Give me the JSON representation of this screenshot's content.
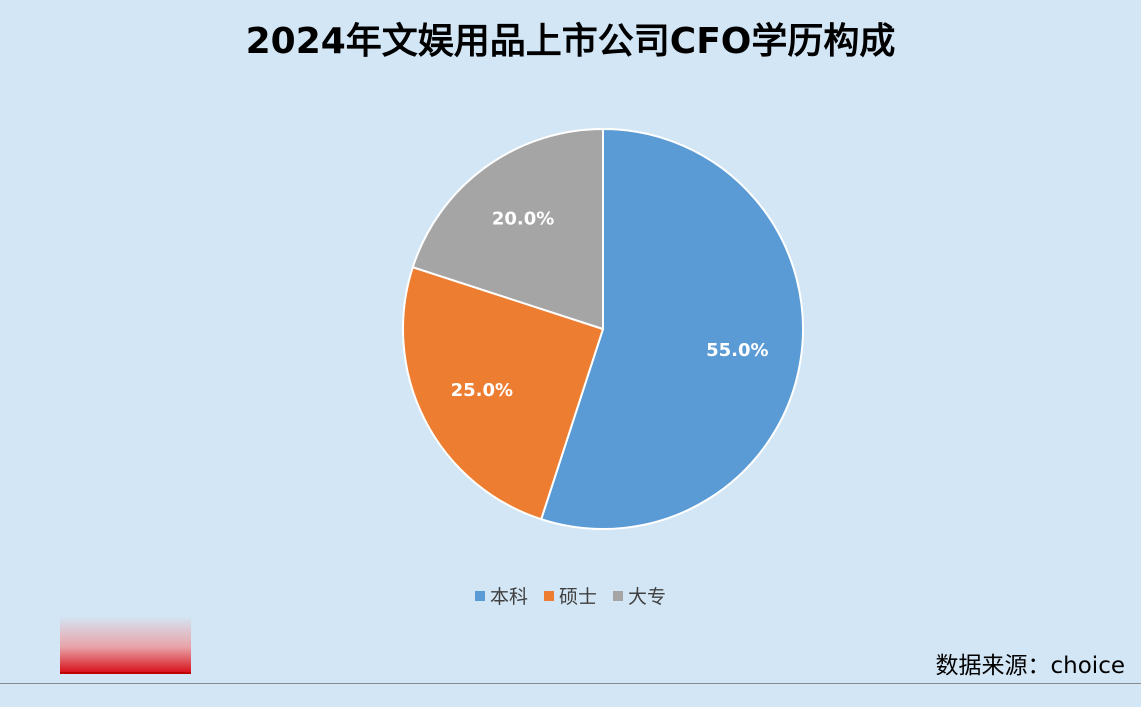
{
  "chart_data": {
    "type": "pie",
    "title": "2024年文娱用品上市公司CFO学历构成",
    "categories": [
      "本科",
      "硕士",
      "大专"
    ],
    "values": [
      55.0,
      25.0,
      20.0
    ],
    "data_labels": [
      "55.0%",
      "25.0%",
      "20.0%"
    ],
    "colors": [
      "#5b9bd5",
      "#ed7d31",
      "#a5a5a5"
    ],
    "legend_position": "bottom",
    "start_angle": "top, clockwise"
  },
  "source": "数据来源：choice"
}
